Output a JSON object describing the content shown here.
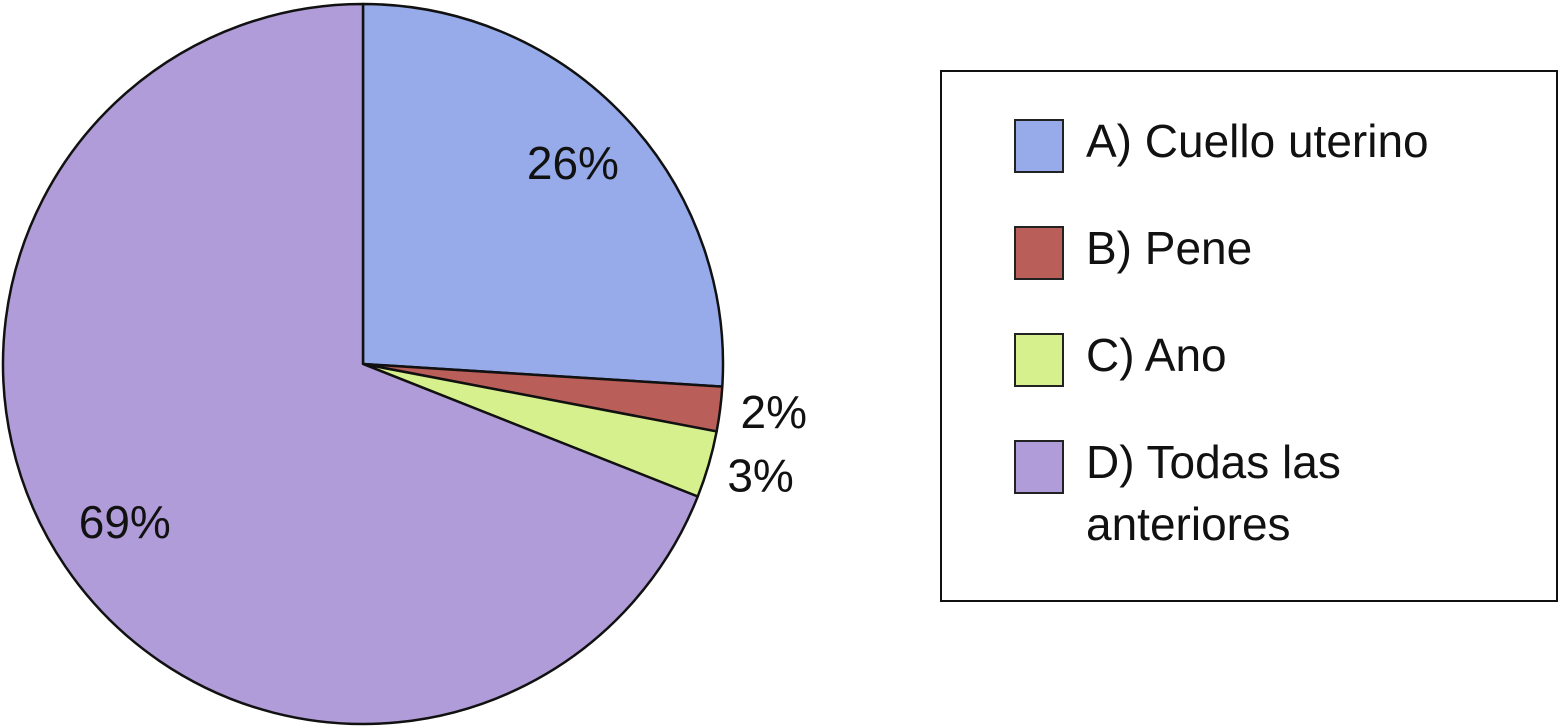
{
  "chart_data": {
    "type": "pie",
    "categories": [
      "A) Cuello uterino",
      "B) Pene",
      "C) Ano",
      "D) Todas las anteriores"
    ],
    "values": [
      26,
      2,
      3,
      69
    ],
    "value_labels": [
      "26%",
      "2%",
      "3%",
      "69%"
    ],
    "colors": [
      "#97abea",
      "#b95e58",
      "#d6f08e",
      "#b09cd8"
    ]
  }
}
